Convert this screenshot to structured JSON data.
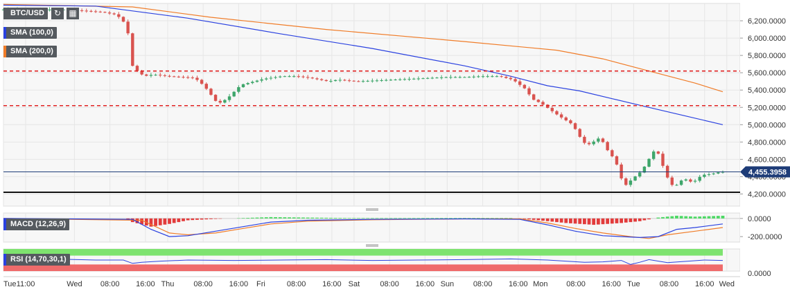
{
  "header": {
    "symbol": "BTC/USD",
    "refresh_icon": "refresh-icon",
    "calendar_icon": "calendar-icon"
  },
  "indicators": {
    "sma100": {
      "label": "SMA (100,0)",
      "color": "#2a41e0"
    },
    "sma200": {
      "label": "SMA (200,0)",
      "color": "#f07c28"
    },
    "macd": {
      "label": "MACD (12,26,9)",
      "color": "#2a41e0"
    },
    "rsi": {
      "label": "RSI (14,70,30,1)",
      "color": "#2a41e0"
    }
  },
  "colors": {
    "up": "#3fa66b",
    "down": "#d9534f",
    "level": "#e02020",
    "last": "#1e3c78"
  },
  "chart_data": [
    {
      "type": "candlestick",
      "pane": "price",
      "title": "BTC/USD",
      "ylim": [
        4060,
        6400
      ],
      "y_ticks": [
        "6,200.0000",
        "6,000.0000",
        "5,800.0000",
        "5,600.0000",
        "5,400.0000",
        "5,200.0000",
        "5,000.0000",
        "4,800.0000",
        "4,600.0000",
        "4,400.0000",
        "4,200.0000"
      ],
      "y_tick_values": [
        6200,
        6000,
        5800,
        5600,
        5400,
        5200,
        5000,
        4800,
        4600,
        4400,
        4200
      ],
      "last_price": "4,455.3958",
      "last_price_value": 4455.4,
      "price_path": [
        [
          0,
          6330
        ],
        [
          14,
          6330
        ],
        [
          22,
          6300
        ],
        [
          25,
          6270
        ],
        [
          26,
          6220
        ],
        [
          27,
          6160
        ],
        [
          28,
          5950
        ],
        [
          28.5,
          5680
        ],
        [
          29.5,
          5620
        ],
        [
          31,
          5560
        ],
        [
          33,
          5580
        ],
        [
          36,
          5560
        ],
        [
          42,
          5540
        ],
        [
          44,
          5450
        ],
        [
          47,
          5240
        ],
        [
          49,
          5300
        ],
        [
          52,
          5460
        ],
        [
          57,
          5530
        ],
        [
          61,
          5560
        ],
        [
          64,
          5560
        ],
        [
          67,
          5540
        ],
        [
          71,
          5500
        ],
        [
          73,
          5520
        ],
        [
          77,
          5500
        ],
        [
          81,
          5510
        ],
        [
          85,
          5520
        ],
        [
          89,
          5530
        ],
        [
          93,
          5540
        ],
        [
          97,
          5550
        ],
        [
          101,
          5550
        ],
        [
          104,
          5560
        ],
        [
          108,
          5560
        ],
        [
          111,
          5520
        ],
        [
          114,
          5400
        ],
        [
          115,
          5300
        ],
        [
          117,
          5250
        ],
        [
          121,
          5100
        ],
        [
          124,
          5000
        ],
        [
          125,
          4900
        ],
        [
          126,
          4820
        ],
        [
          127,
          4760
        ],
        [
          129,
          4820
        ],
        [
          130,
          4860
        ],
        [
          131,
          4740
        ],
        [
          133,
          4600
        ],
        [
          134,
          4480
        ],
        [
          135,
          4280
        ],
        [
          137,
          4380
        ],
        [
          139,
          4470
        ],
        [
          141,
          4650
        ],
        [
          142,
          4730
        ],
        [
          143,
          4600
        ],
        [
          144,
          4450
        ],
        [
          145,
          4330
        ],
        [
          146,
          4280
        ],
        [
          148,
          4380
        ],
        [
          150,
          4330
        ],
        [
          152,
          4420
        ],
        [
          154,
          4430
        ],
        [
          156,
          4455
        ]
      ],
      "sma100_path": [
        [
          0,
          6380
        ],
        [
          20,
          6370
        ],
        [
          40,
          6230
        ],
        [
          60,
          6050
        ],
        [
          80,
          5880
        ],
        [
          100,
          5680
        ],
        [
          110,
          5560
        ],
        [
          118,
          5450
        ],
        [
          125,
          5390
        ],
        [
          132,
          5300
        ],
        [
          140,
          5200
        ],
        [
          148,
          5100
        ],
        [
          156,
          5000
        ]
      ],
      "sma200_path": [
        [
          0,
          6390
        ],
        [
          28,
          6360
        ],
        [
          45,
          6240
        ],
        [
          70,
          6100
        ],
        [
          100,
          5960
        ],
        [
          120,
          5860
        ],
        [
          130,
          5760
        ],
        [
          140,
          5620
        ],
        [
          150,
          5480
        ],
        [
          156,
          5380
        ]
      ],
      "horizontal_levels": [
        5620,
        5220,
        4220
      ],
      "x_labels": [
        "Tue",
        "11:00",
        "Wed",
        "08:00",
        "16:00",
        "Thu",
        "08:00",
        "16:00",
        "Fri",
        "08:00",
        "16:00",
        "Sat",
        "08:00",
        "16:00",
        "Sun",
        "08:00",
        "16:00",
        "Mon",
        "08:00",
        "16:00",
        "Tue",
        "08:00",
        "16:00",
        "Wed"
      ],
      "x_label_index": [
        0,
        5,
        16,
        24,
        32,
        37,
        45,
        53,
        58,
        66,
        74,
        79,
        87,
        95,
        100,
        108,
        116,
        121,
        129,
        137,
        142,
        150,
        158,
        163
      ]
    },
    {
      "type": "histogram",
      "pane": "macd",
      "title": "MACD (12,26,9)",
      "y_ticks": [
        "0.0000",
        "-200.0000"
      ],
      "y_tick_values": [
        0,
        -200
      ],
      "ylim": [
        -260,
        60
      ],
      "hist_path": [
        [
          0,
          0
        ],
        [
          26,
          0
        ],
        [
          28,
          -40
        ],
        [
          32,
          -90
        ],
        [
          36,
          -60
        ],
        [
          40,
          -20
        ],
        [
          46,
          -5
        ],
        [
          52,
          5
        ],
        [
          58,
          15
        ],
        [
          66,
          10
        ],
        [
          75,
          5
        ],
        [
          85,
          5
        ],
        [
          95,
          5
        ],
        [
          105,
          5
        ],
        [
          110,
          5
        ],
        [
          114,
          -10
        ],
        [
          118,
          -30
        ],
        [
          122,
          -50
        ],
        [
          128,
          -70
        ],
        [
          134,
          -50
        ],
        [
          138,
          -30
        ],
        [
          142,
          10
        ],
        [
          146,
          30
        ],
        [
          150,
          20
        ],
        [
          156,
          30
        ]
      ],
      "macd_path": [
        [
          0,
          0
        ],
        [
          28,
          -10
        ],
        [
          32,
          -120
        ],
        [
          36,
          -200
        ],
        [
          40,
          -190
        ],
        [
          46,
          -140
        ],
        [
          52,
          -90
        ],
        [
          58,
          -40
        ],
        [
          66,
          -20
        ],
        [
          80,
          -10
        ],
        [
          100,
          -5
        ],
        [
          112,
          -10
        ],
        [
          118,
          -70
        ],
        [
          124,
          -140
        ],
        [
          130,
          -190
        ],
        [
          134,
          -200
        ],
        [
          138,
          -210
        ],
        [
          142,
          -200
        ],
        [
          146,
          -120
        ],
        [
          150,
          -100
        ],
        [
          156,
          -60
        ]
      ],
      "signal_path": [
        [
          0,
          0
        ],
        [
          30,
          -20
        ],
        [
          36,
          -160
        ],
        [
          40,
          -180
        ],
        [
          46,
          -160
        ],
        [
          52,
          -110
        ],
        [
          58,
          -60
        ],
        [
          66,
          -30
        ],
        [
          80,
          -15
        ],
        [
          100,
          -5
        ],
        [
          112,
          -5
        ],
        [
          118,
          -50
        ],
        [
          124,
          -110
        ],
        [
          130,
          -160
        ],
        [
          136,
          -200
        ],
        [
          140,
          -220
        ],
        [
          144,
          -180
        ],
        [
          150,
          -140
        ],
        [
          156,
          -100
        ]
      ]
    },
    {
      "type": "line",
      "pane": "rsi",
      "title": "RSI (14,70,30,1)",
      "y_ticks": [
        "0.0000"
      ],
      "y_tick_values": [
        0
      ],
      "ylim": [
        0,
        100
      ],
      "rsi_path": [
        [
          0,
          52
        ],
        [
          10,
          55
        ],
        [
          20,
          50
        ],
        [
          26,
          50
        ],
        [
          28,
          35
        ],
        [
          30,
          40
        ],
        [
          34,
          45
        ],
        [
          40,
          50
        ],
        [
          50,
          48
        ],
        [
          60,
          50
        ],
        [
          70,
          52
        ],
        [
          80,
          48
        ],
        [
          90,
          50
        ],
        [
          100,
          52
        ],
        [
          110,
          55
        ],
        [
          118,
          50
        ],
        [
          122,
          45
        ],
        [
          126,
          40
        ],
        [
          130,
          42
        ],
        [
          134,
          48
        ],
        [
          136,
          30
        ],
        [
          138,
          40
        ],
        [
          140,
          52
        ],
        [
          144,
          38
        ],
        [
          148,
          44
        ],
        [
          152,
          50
        ],
        [
          156,
          48
        ]
      ]
    }
  ]
}
